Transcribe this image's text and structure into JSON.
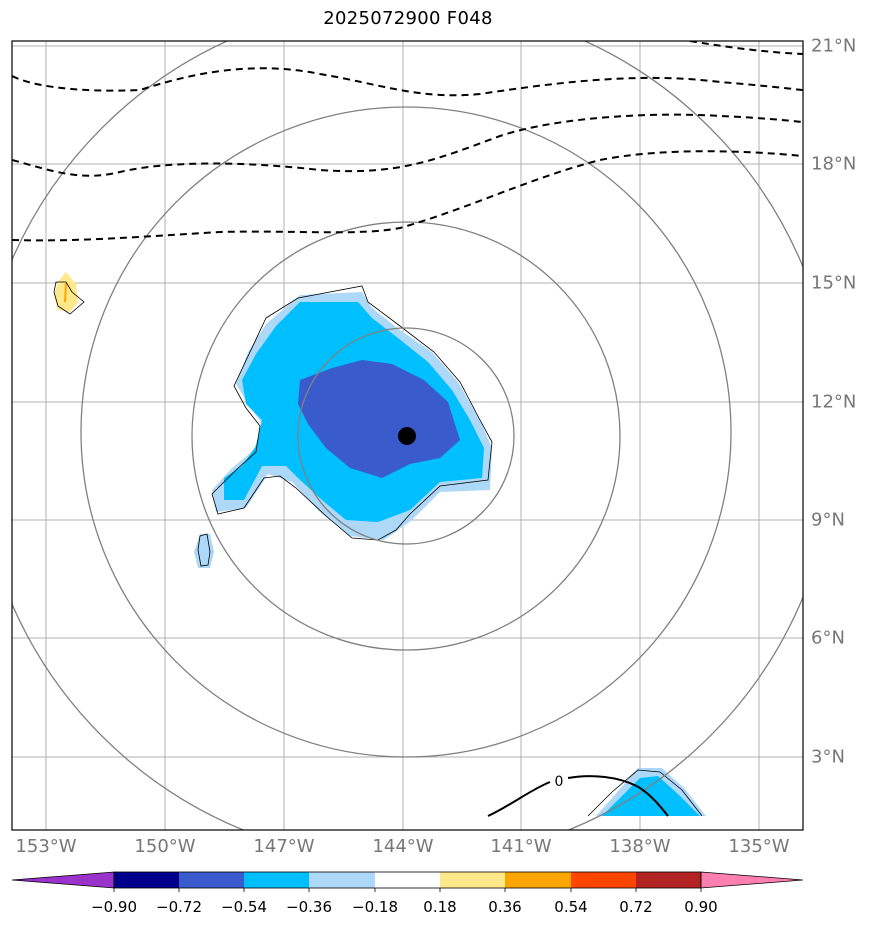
{
  "title": "2025072900 F048",
  "longitude_labels": [
    "153°W",
    "150°W",
    "147°W",
    "144°W",
    "141°W",
    "138°W",
    "135°W"
  ],
  "latitude_labels": [
    "3°N",
    "6°N",
    "9°N",
    "12°N",
    "15°N",
    "18°N",
    "21°N"
  ],
  "colorbar": {
    "tick_labels": [
      "−0.90",
      "−0.72",
      "−0.54",
      "−0.36",
      "−0.18",
      "0.18",
      "0.36",
      "0.54",
      "0.72",
      "0.90"
    ],
    "colors": [
      "#9933cc",
      "#00008b",
      "#3a5bcc",
      "#00bfff",
      "#add8f7",
      "#ffffff",
      "#ffe88a",
      "#ffa500",
      "#ff4500",
      "#b22222",
      "#ff80b0"
    ]
  },
  "contour_label": "0",
  "map_colors": {
    "grid": "#b0b0b0",
    "range_rings": "#808080",
    "dashed_contours": "#000000",
    "storm_center": "#000000"
  }
}
